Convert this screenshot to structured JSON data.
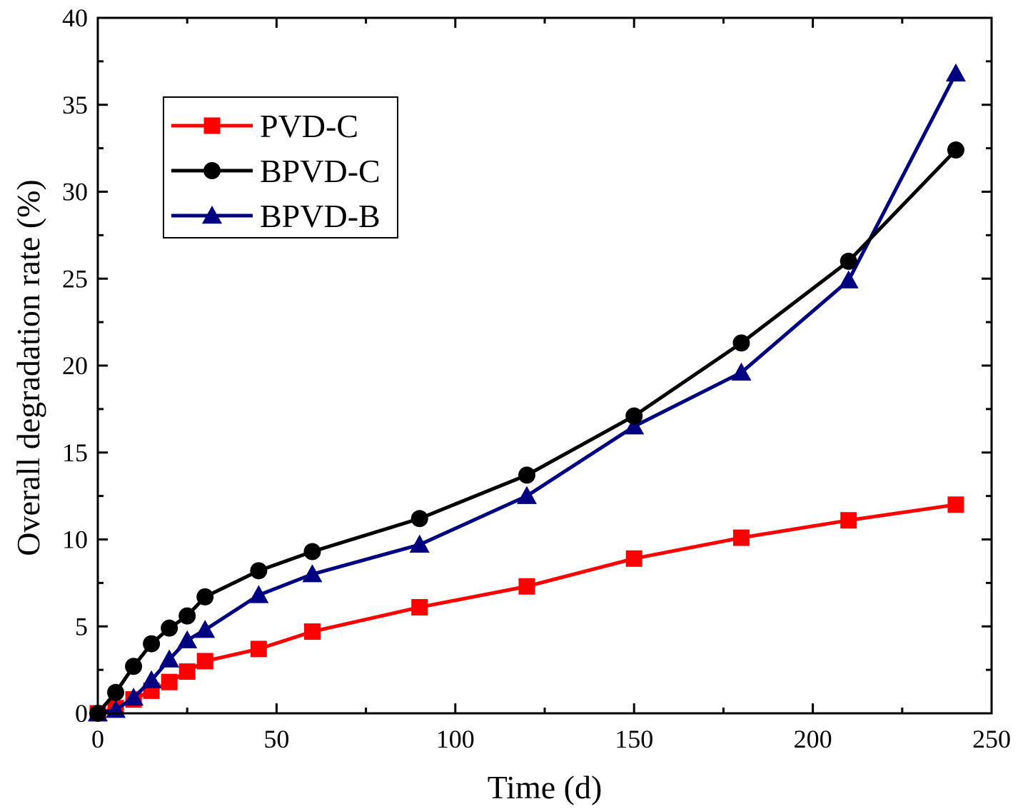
{
  "chart_data": {
    "type": "line",
    "title": "",
    "xlabel": "Time (d)",
    "ylabel": "Overall degradation rate (%)",
    "xlim": [
      0,
      250
    ],
    "ylim": [
      0,
      40
    ],
    "xticks": [
      0,
      50,
      100,
      150,
      200,
      250
    ],
    "yticks": [
      0,
      5,
      10,
      15,
      20,
      25,
      30,
      35,
      40
    ],
    "grid": false,
    "legend_position": "top-left",
    "series": [
      {
        "name": "PVD-C",
        "color": "#ff0000",
        "marker": "square",
        "x": [
          0,
          5,
          10,
          15,
          20,
          25,
          30,
          45,
          60,
          90,
          120,
          150,
          180,
          210,
          240
        ],
        "y": [
          0,
          0.3,
          0.8,
          1.3,
          1.8,
          2.4,
          3.0,
          3.7,
          4.7,
          6.1,
          7.3,
          8.9,
          10.1,
          11.1,
          12.0
        ]
      },
      {
        "name": "BPVD-C",
        "color": "#000000",
        "marker": "circle",
        "x": [
          0,
          5,
          10,
          15,
          20,
          25,
          30,
          45,
          60,
          90,
          120,
          150,
          180,
          210,
          240
        ],
        "y": [
          0,
          1.2,
          2.7,
          4.0,
          4.9,
          5.6,
          6.7,
          8.2,
          9.3,
          11.2,
          13.7,
          17.1,
          21.3,
          26.0,
          32.4
        ]
      },
      {
        "name": "BPVD-B",
        "color": "#000080",
        "marker": "triangle",
        "x": [
          0,
          5,
          10,
          15,
          20,
          25,
          30,
          45,
          60,
          90,
          120,
          150,
          180,
          210,
          240
        ],
        "y": [
          0,
          0.2,
          0.9,
          1.9,
          3.1,
          4.2,
          4.8,
          6.8,
          8.0,
          9.7,
          12.5,
          16.5,
          19.6,
          24.9,
          36.8
        ]
      }
    ]
  }
}
